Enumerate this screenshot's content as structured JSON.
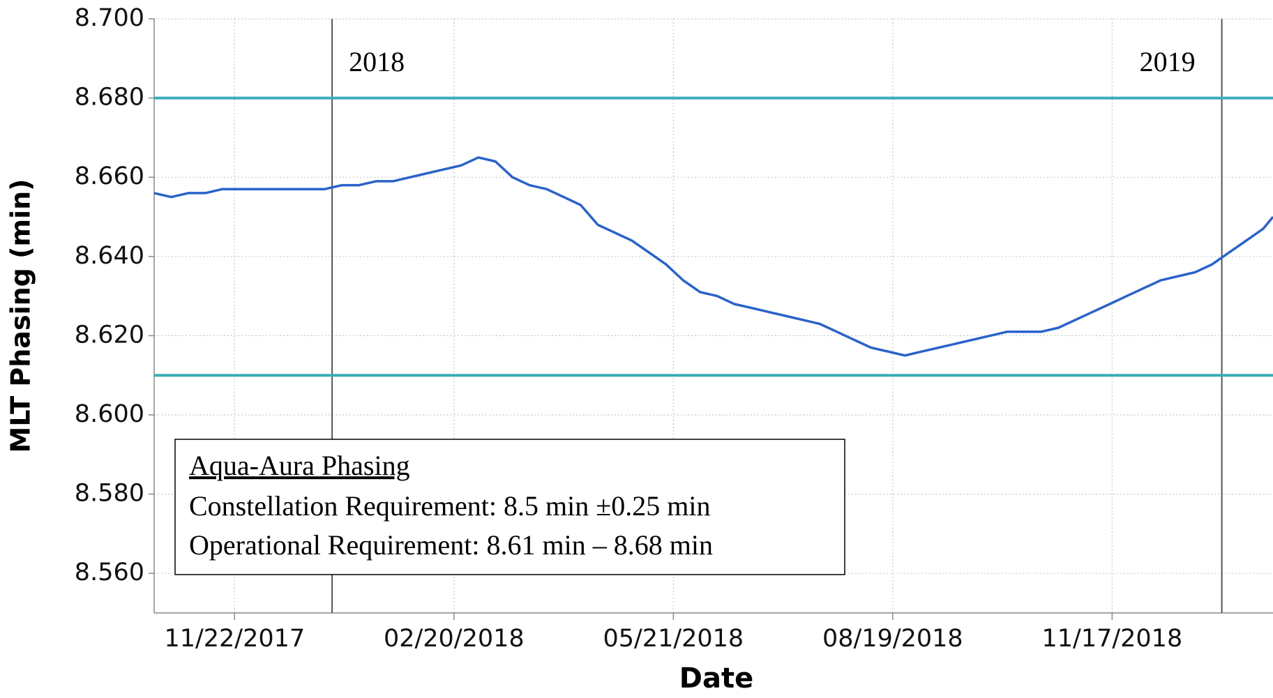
{
  "chart_data": {
    "type": "line",
    "xlabel": "Date",
    "ylabel": "MLT Phasing (min)",
    "xlim": [
      "10/20/2017",
      "01/22/2019"
    ],
    "xticks": [
      "11/22/2017",
      "02/20/2018",
      "05/21/2018",
      "08/19/2018",
      "11/17/2018"
    ],
    "ylim": [
      8.55,
      8.7
    ],
    "yticks": [
      {
        "value": 8.56,
        "label": "8.560"
      },
      {
        "value": 8.58,
        "label": "8.580"
      },
      {
        "value": 8.6,
        "label": "8.600"
      },
      {
        "value": 8.62,
        "label": "8.620"
      },
      {
        "value": 8.64,
        "label": "8.640"
      },
      {
        "value": 8.66,
        "label": "8.660"
      },
      {
        "value": 8.68,
        "label": "8.680"
      },
      {
        "value": 8.7,
        "label": "8.700"
      }
    ],
    "grid": true,
    "reference_lines": [
      {
        "value": 8.68,
        "color": "#3aadba"
      },
      {
        "value": 8.61,
        "color": "#3aadba"
      }
    ],
    "year_lines": [
      {
        "x": "01/01/2018",
        "label": "2018"
      },
      {
        "x": "01/01/2019",
        "label": "2019"
      }
    ],
    "annotation": {
      "title": "Aqua-Aura Phasing",
      "lines": [
        "Constellation Requirement: 8.5 min ±0.25 min",
        "Operational Requirement: 8.61 min – 8.68 min"
      ]
    },
    "x": [
      "10/20/2017",
      "10/27/2017",
      "11/03/2017",
      "11/10/2017",
      "11/17/2017",
      "11/24/2017",
      "12/01/2017",
      "12/08/2017",
      "12/15/2017",
      "12/22/2017",
      "12/29/2017",
      "01/05/2018",
      "01/12/2018",
      "01/19/2018",
      "01/26/2018",
      "02/02/2018",
      "02/09/2018",
      "02/16/2018",
      "02/23/2018",
      "03/02/2018",
      "03/09/2018",
      "03/16/2018",
      "03/23/2018",
      "03/30/2018",
      "04/06/2018",
      "04/13/2018",
      "04/20/2018",
      "04/27/2018",
      "05/04/2018",
      "05/11/2018",
      "05/18/2018",
      "05/25/2018",
      "06/01/2018",
      "06/08/2018",
      "06/15/2018",
      "06/22/2018",
      "06/29/2018",
      "07/06/2018",
      "07/13/2018",
      "07/20/2018",
      "07/27/2018",
      "08/03/2018",
      "08/10/2018",
      "08/17/2018",
      "08/24/2018",
      "08/31/2018",
      "09/07/2018",
      "09/14/2018",
      "09/21/2018",
      "09/28/2018",
      "10/05/2018",
      "10/12/2018",
      "10/19/2018",
      "10/26/2018",
      "11/02/2018",
      "11/09/2018",
      "11/16/2018",
      "11/23/2018",
      "11/30/2018",
      "12/07/2018",
      "12/14/2018",
      "12/21/2018",
      "12/28/2018",
      "01/04/2019",
      "01/11/2019",
      "01/18/2019",
      "01/22/2019"
    ],
    "series": [
      {
        "name": "MLT Phasing",
        "color": "#2a62c9",
        "values": [
          8.656,
          8.655,
          8.656,
          8.656,
          8.657,
          8.657,
          8.657,
          8.657,
          8.657,
          8.657,
          8.657,
          8.658,
          8.658,
          8.659,
          8.659,
          8.66,
          8.661,
          8.662,
          8.663,
          8.665,
          8.664,
          8.66,
          8.658,
          8.657,
          8.655,
          8.653,
          8.648,
          8.646,
          8.644,
          8.641,
          8.638,
          8.634,
          8.631,
          8.63,
          8.628,
          8.627,
          8.626,
          8.625,
          8.624,
          8.623,
          8.621,
          8.619,
          8.617,
          8.616,
          8.615,
          8.616,
          8.617,
          8.618,
          8.619,
          8.62,
          8.621,
          8.621,
          8.621,
          8.622,
          8.624,
          8.626,
          8.628,
          8.63,
          8.632,
          8.634,
          8.635,
          8.636,
          8.638,
          8.641,
          8.644,
          8.647,
          8.65
        ]
      }
    ]
  }
}
